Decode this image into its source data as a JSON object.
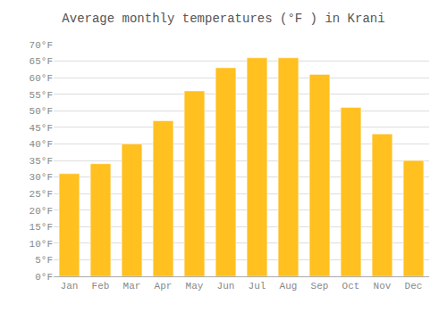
{
  "chart_data": {
    "type": "bar",
    "title": "Average monthly temperatures (°F ) in Krani",
    "categories": [
      "Jan",
      "Feb",
      "Mar",
      "Apr",
      "May",
      "Jun",
      "Jul",
      "Aug",
      "Sep",
      "Oct",
      "Nov",
      "Dec"
    ],
    "values": [
      31,
      34,
      40,
      47,
      56,
      63,
      66,
      66,
      61,
      51,
      43,
      35
    ],
    "color": "#FFC020",
    "ylim": [
      0,
      70
    ],
    "yticks": [
      {
        "value": 0,
        "label": "0°F"
      },
      {
        "value": 5,
        "label": "5°F"
      },
      {
        "value": 10,
        "label": "10°F"
      },
      {
        "value": 15,
        "label": "15°F"
      },
      {
        "value": 20,
        "label": "20°F"
      },
      {
        "value": 25,
        "label": "25°F"
      },
      {
        "value": 30,
        "label": "30°F"
      },
      {
        "value": 35,
        "label": "35°F"
      },
      {
        "value": 40,
        "label": "40°F"
      },
      {
        "value": 45,
        "label": "45°F"
      },
      {
        "value": 50,
        "label": "50°F"
      },
      {
        "value": 55,
        "label": "55°F"
      },
      {
        "value": 60,
        "label": "60°F"
      },
      {
        "value": 65,
        "label": "65°F"
      },
      {
        "value": 70,
        "label": "70°F"
      }
    ],
    "grid": true
  }
}
